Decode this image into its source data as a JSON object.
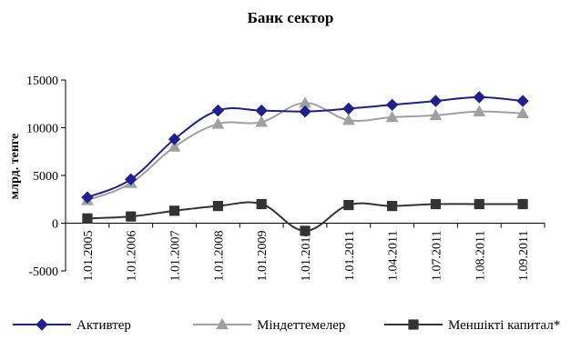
{
  "chart_data": {
    "type": "line",
    "title": "Банк сектор",
    "ylabel": "млрд. тенге",
    "xlabel": "",
    "ylim": [
      -5000,
      15000
    ],
    "yticks": [
      -5000,
      0,
      5000,
      10000,
      15000
    ],
    "grid": false,
    "legend_position": "bottom",
    "categories": [
      "1.01.2005",
      "1.01.2006",
      "1.01.2007",
      "1.01.2008",
      "1.01.2009",
      "1.01.2010",
      "1.01.2011",
      "1.04.2011",
      "1.07.2011",
      "1.08.2011",
      "1.09.2011"
    ],
    "series": [
      {
        "name": "Активтер",
        "marker": "diamond",
        "color": "#1f1f8f",
        "values": [
          2700,
          4600,
          8800,
          11800,
          11800,
          11700,
          12000,
          12400,
          12800,
          13200,
          12800
        ]
      },
      {
        "name": "Міндеттемелер",
        "marker": "triangle",
        "color": "#a0a0a0",
        "values": [
          2400,
          4200,
          8000,
          10400,
          10600,
          12600,
          10800,
          11100,
          11300,
          11700,
          11500
        ]
      },
      {
        "name": "Меншікті капитал*",
        "marker": "square",
        "color": "#333333",
        "values": [
          500,
          700,
          1300,
          1800,
          2000,
          -800,
          1900,
          1800,
          2000,
          2000,
          2000
        ]
      }
    ]
  }
}
